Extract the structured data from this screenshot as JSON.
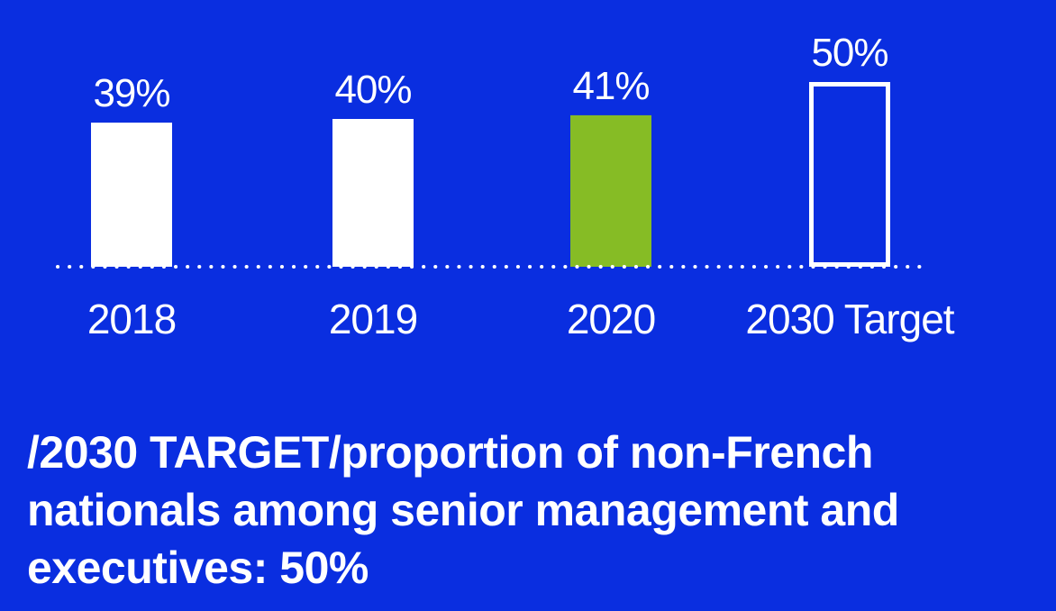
{
  "colors": {
    "background": "#0a2ee0",
    "bar": "#ffffff",
    "highlight": "#86bc25",
    "text": "#ffffff"
  },
  "chart_data": {
    "type": "bar",
    "categories": [
      "2018",
      "2019",
      "2020",
      "2030 Target"
    ],
    "values": [
      39,
      40,
      41,
      50
    ],
    "value_labels": [
      "39%",
      "40%",
      "41%",
      "50%"
    ],
    "bar_styles": [
      "filled",
      "filled",
      "highlight",
      "outline"
    ],
    "title": "",
    "xlabel": "",
    "ylabel": "",
    "baseline": "dotted",
    "grid": false,
    "legend": "none"
  },
  "caption": {
    "text": "/2030 TARGET/proportion of non-French nationals among senior management and executives:  50%"
  }
}
